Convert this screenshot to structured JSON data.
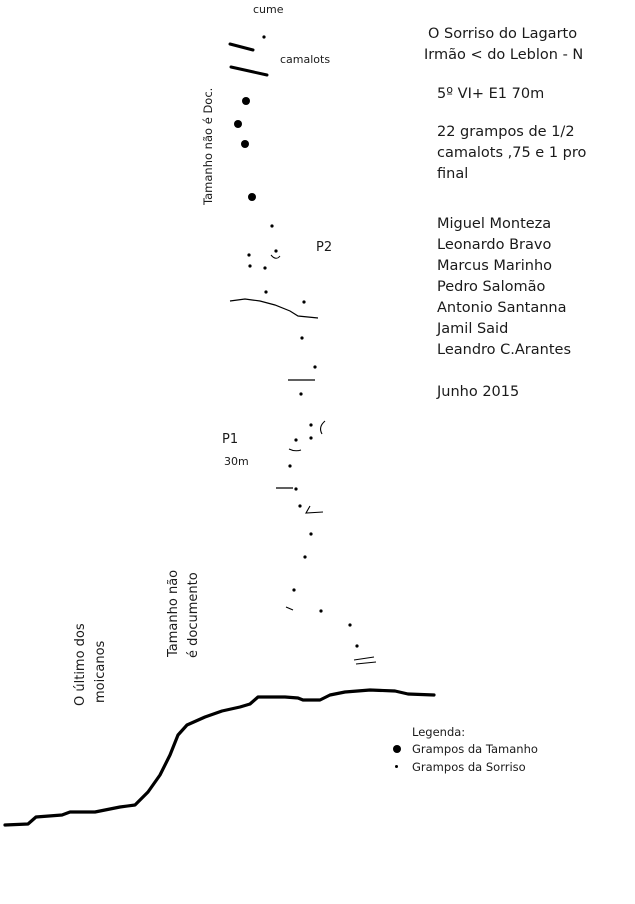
{
  "route_info": {
    "title": "O Sorriso do Lagarto",
    "subtitle": "Irmão < do Leblon - N",
    "grade": "5º VI+ E1 70m",
    "gear_line1": "22 grampos de 1/2",
    "gear_line2": "camalots ,75 e 1  pro",
    "gear_line3": "final",
    "climbers": [
      "Miguel Monteza",
      "Leonardo Bravo",
      "Marcus Marinho",
      "Pedro Salomão",
      "Antonio Santanna",
      "Jamil Said",
      "Leandro C.Arantes"
    ],
    "date": "Junho 2015"
  },
  "topo_labels": {
    "summit": "cume",
    "camalots": "camalots",
    "belay2": "P2",
    "belay1": "P1",
    "pitch1_length": "30m"
  },
  "vertical_labels": {
    "tamanho_top": "Tamanho não é Doc.",
    "tamanho_mid_line1": "Tamanho não",
    "tamanho_mid_line2": "é documento",
    "moicanos_line1": "O último dos",
    "moicanos_line2": "moicanos"
  },
  "legend": {
    "title": "Legenda:",
    "items": [
      {
        "label": "Grampos da Tamanho",
        "marker": "large-dot"
      },
      {
        "label": "Grampos da Sorriso",
        "marker": "small-dot"
      }
    ]
  },
  "colors": {
    "ink": "#000000",
    "text": "#1a1a1a",
    "background": "#ffffff"
  }
}
